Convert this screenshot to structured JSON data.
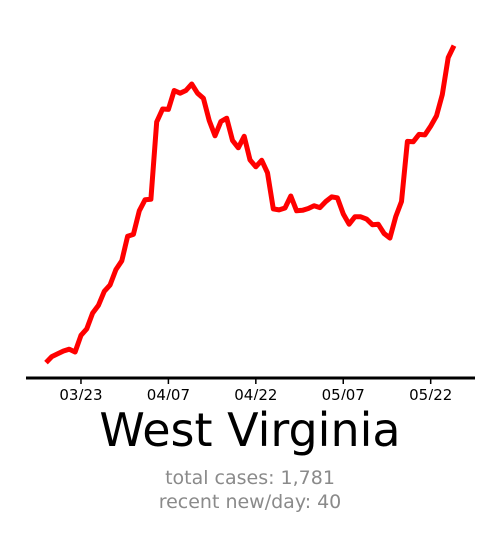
{
  "colors": {
    "line": "#ff0000",
    "axis": "#000000",
    "stats": "#8a8a8a"
  },
  "title": "West Virginia",
  "stats": {
    "total_label": "total cases:",
    "total_value": "1,781",
    "recent_label": "recent new/day:",
    "recent_value": "40"
  },
  "chart_data": {
    "type": "line",
    "title": "West Virginia",
    "xlabel": "",
    "ylabel": "",
    "x_ticks": [
      "03/23",
      "04/07",
      "04/22",
      "05/07",
      "05/22"
    ],
    "x_range": [
      "03/17",
      "05/26"
    ],
    "ylim": [
      0,
      70
    ],
    "grid": false,
    "legend": "none",
    "series": [
      {
        "x": [
          "03/17",
          "03/18",
          "03/19",
          "03/20",
          "03/21",
          "03/22",
          "03/23",
          "03/24",
          "03/25",
          "03/26",
          "03/27",
          "03/28",
          "03/29",
          "03/30",
          "03/31",
          "04/01",
          "04/02",
          "04/03",
          "04/04",
          "04/05",
          "04/06",
          "04/07",
          "04/08",
          "04/09",
          "04/10",
          "04/11",
          "04/12",
          "04/13",
          "04/14",
          "04/15",
          "04/16",
          "04/17",
          "04/18",
          "04/19",
          "04/20",
          "04/21",
          "04/22",
          "04/23",
          "04/24",
          "04/25",
          "04/26",
          "04/27",
          "04/28",
          "04/29",
          "04/30",
          "05/01",
          "05/02",
          "05/03",
          "05/04",
          "05/05",
          "05/06",
          "05/07",
          "05/08",
          "05/09",
          "05/10",
          "05/11",
          "05/12",
          "05/13",
          "05/14",
          "05/15",
          "05/16",
          "05/17",
          "05/18",
          "05/19",
          "05/20",
          "05/21",
          "05/22",
          "05/23",
          "05/24",
          "05/25",
          "05/26"
        ],
        "values": [
          0.3,
          1.6,
          2.2,
          2.8,
          3.2,
          2.6,
          6.2,
          7.6,
          11,
          12.7,
          15.7,
          17.1,
          20.4,
          22.3,
          27.6,
          28,
          33.1,
          35.5,
          35.6,
          52.3,
          55.1,
          55,
          59.1,
          58.5,
          59.1,
          60.5,
          58.5,
          57.4,
          52.6,
          49.3,
          52.4,
          53.1,
          48.3,
          46.7,
          49.2,
          44.1,
          42.6,
          44,
          41.3,
          33.5,
          33.3,
          33.7,
          36.3,
          33.1,
          33.2,
          33.6,
          34.2,
          33.8,
          35.1,
          36.1,
          35.9,
          32.4,
          30.2,
          31.8,
          31.8,
          31.3,
          30.1,
          30.2,
          28.2,
          27.2,
          31.8,
          35.1,
          48.1,
          48,
          49.6,
          49.5,
          51.4,
          53.6,
          58.2,
          66.2,
          68.8
        ]
      }
    ]
  }
}
